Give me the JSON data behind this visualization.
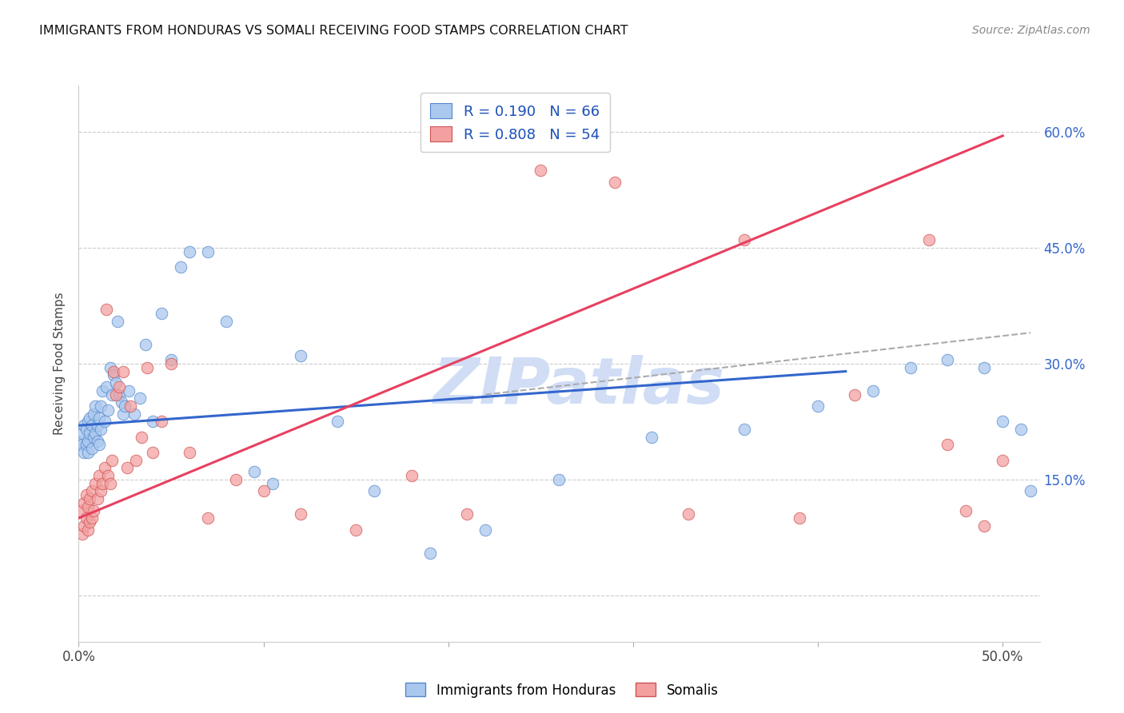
{
  "title": "IMMIGRANTS FROM HONDURAS VS SOMALI RECEIVING FOOD STAMPS CORRELATION CHART",
  "source": "Source: ZipAtlas.com",
  "ylabel": "Receiving Food Stamps",
  "y_ticks": [
    0.0,
    0.15,
    0.3,
    0.45,
    0.6
  ],
  "y_tick_labels": [
    "",
    "15.0%",
    "30.0%",
    "45.0%",
    "60.0%"
  ],
  "x_ticks": [
    0.0,
    0.1,
    0.2,
    0.3,
    0.4,
    0.5
  ],
  "x_tick_labels": [
    "0.0%",
    "",
    "",
    "",
    "",
    "50.0%"
  ],
  "xlim": [
    0.0,
    0.52
  ],
  "ylim": [
    -0.06,
    0.66
  ],
  "blue_R": 0.19,
  "blue_N": 66,
  "pink_R": 0.808,
  "pink_N": 54,
  "blue_color": "#aac8ee",
  "pink_color": "#f4a0a0",
  "blue_edge_color": "#5588cc",
  "pink_edge_color": "#cc5555",
  "blue_line_color": "#3366cc",
  "pink_line_color": "#e84060",
  "watermark_color": "#d0ddf5",
  "blue_scatter_x": [
    0.001,
    0.002,
    0.002,
    0.003,
    0.003,
    0.004,
    0.004,
    0.005,
    0.005,
    0.005,
    0.006,
    0.006,
    0.007,
    0.007,
    0.008,
    0.008,
    0.009,
    0.009,
    0.01,
    0.01,
    0.011,
    0.011,
    0.012,
    0.012,
    0.013,
    0.014,
    0.015,
    0.016,
    0.017,
    0.018,
    0.019,
    0.02,
    0.021,
    0.022,
    0.023,
    0.024,
    0.025,
    0.027,
    0.03,
    0.033,
    0.036,
    0.04,
    0.045,
    0.05,
    0.055,
    0.06,
    0.07,
    0.08,
    0.095,
    0.105,
    0.12,
    0.14,
    0.16,
    0.19,
    0.22,
    0.26,
    0.31,
    0.36,
    0.4,
    0.43,
    0.45,
    0.47,
    0.49,
    0.5,
    0.51,
    0.515
  ],
  "blue_scatter_y": [
    0.2,
    0.195,
    0.21,
    0.185,
    0.22,
    0.195,
    0.215,
    0.2,
    0.185,
    0.225,
    0.21,
    0.23,
    0.19,
    0.22,
    0.205,
    0.235,
    0.21,
    0.245,
    0.2,
    0.22,
    0.195,
    0.23,
    0.215,
    0.245,
    0.265,
    0.225,
    0.27,
    0.24,
    0.295,
    0.26,
    0.285,
    0.275,
    0.355,
    0.26,
    0.25,
    0.235,
    0.245,
    0.265,
    0.235,
    0.255,
    0.325,
    0.225,
    0.365,
    0.305,
    0.425,
    0.445,
    0.445,
    0.355,
    0.16,
    0.145,
    0.31,
    0.225,
    0.135,
    0.055,
    0.085,
    0.15,
    0.205,
    0.215,
    0.245,
    0.265,
    0.295,
    0.305,
    0.295,
    0.225,
    0.215,
    0.135
  ],
  "pink_scatter_x": [
    0.001,
    0.002,
    0.003,
    0.003,
    0.004,
    0.004,
    0.005,
    0.005,
    0.006,
    0.006,
    0.007,
    0.007,
    0.008,
    0.009,
    0.01,
    0.011,
    0.012,
    0.013,
    0.014,
    0.015,
    0.016,
    0.017,
    0.018,
    0.019,
    0.02,
    0.022,
    0.024,
    0.026,
    0.028,
    0.031,
    0.034,
    0.037,
    0.04,
    0.045,
    0.05,
    0.06,
    0.07,
    0.085,
    0.1,
    0.12,
    0.15,
    0.18,
    0.21,
    0.25,
    0.29,
    0.33,
    0.36,
    0.39,
    0.42,
    0.46,
    0.47,
    0.48,
    0.49,
    0.5
  ],
  "pink_scatter_y": [
    0.11,
    0.08,
    0.12,
    0.09,
    0.13,
    0.1,
    0.115,
    0.085,
    0.125,
    0.095,
    0.135,
    0.1,
    0.11,
    0.145,
    0.125,
    0.155,
    0.135,
    0.145,
    0.165,
    0.37,
    0.155,
    0.145,
    0.175,
    0.29,
    0.26,
    0.27,
    0.29,
    0.165,
    0.245,
    0.175,
    0.205,
    0.295,
    0.185,
    0.225,
    0.3,
    0.185,
    0.1,
    0.15,
    0.135,
    0.105,
    0.085,
    0.155,
    0.105,
    0.55,
    0.535,
    0.105,
    0.46,
    0.1,
    0.26,
    0.46,
    0.195,
    0.11,
    0.09,
    0.175
  ],
  "blue_line_x": [
    0.0,
    0.415
  ],
  "blue_line_y": [
    0.22,
    0.29
  ],
  "pink_line_x": [
    0.0,
    0.5
  ],
  "pink_line_y": [
    0.1,
    0.595
  ],
  "dash_line_x": [
    0.22,
    0.515
  ],
  "dash_line_y": [
    0.26,
    0.34
  ]
}
